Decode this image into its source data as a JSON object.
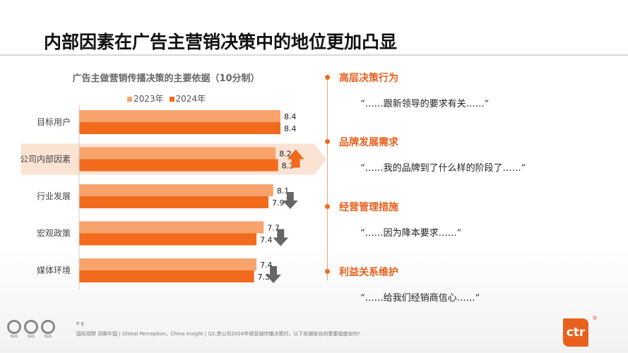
{
  "header": {
    "title": "内部因素在广告主营销决策中的地位更加凸显"
  },
  "chart_data": {
    "type": "bar",
    "orientation": "horizontal",
    "title": "广告主做营销传播决策的主要依据（10分制）",
    "categories": [
      "目标用户",
      "公司内部因素",
      "行业发展",
      "宏观政策",
      "媒体环境"
    ],
    "series": [
      {
        "name": "2023年",
        "values": [
          8.4,
          8.2,
          8.1,
          7.7,
          7.4
        ],
        "color": "#f9a36c"
      },
      {
        "name": "2024年",
        "values": [
          8.4,
          8.3,
          7.9,
          7.4,
          7.3
        ],
        "color": "#f26b1d"
      }
    ],
    "trend": [
      "none",
      "up",
      "down",
      "down",
      "down"
    ],
    "highlighted": "公司内部因素",
    "xlim": [
      0,
      10
    ],
    "legend": "top"
  },
  "side": {
    "items": [
      {
        "title": "高层决策行为",
        "quote": "“……跟新领导的要求有关……”"
      },
      {
        "title": "品牌发展需求",
        "quote": "“……我的品牌到了什么样的阶段了……”"
      },
      {
        "title": "经营管理措施",
        "quote": "“……因为降本要求……”"
      },
      {
        "title": "利益关系维护",
        "quote": "“……给我们经销商信心……”"
      }
    ]
  },
  "footer": {
    "page": "P 6",
    "source": "国际视野  洞察中国 | Global Perception，China Insight | Q2.贵公司2024年做营销传播决策时，以下依据各自的重要程度如何?",
    "logo": "ctr",
    "reg": "®",
    "certs": [
      "SGS",
      "SGS",
      "SGS"
    ]
  }
}
